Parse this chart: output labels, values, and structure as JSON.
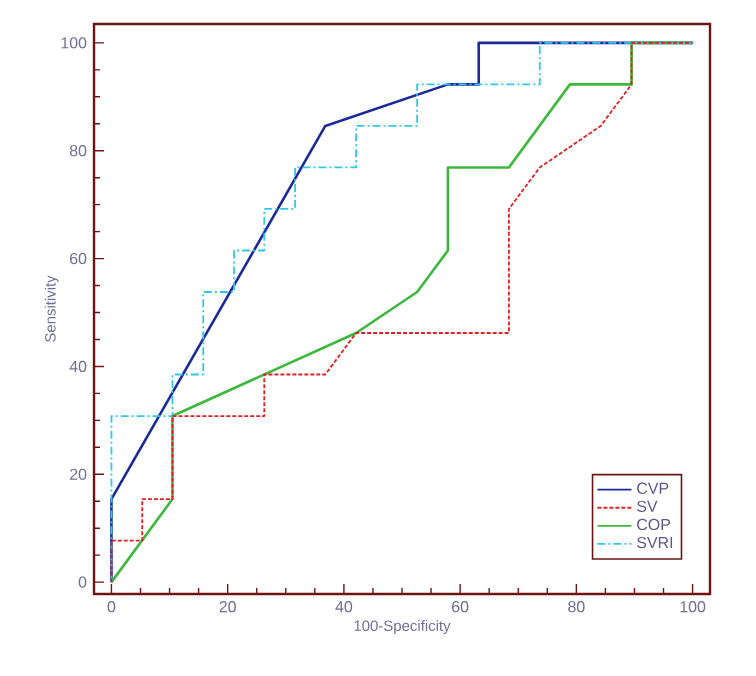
{
  "chart_data": {
    "type": "line",
    "xlabel": "100-Specificity",
    "ylabel": "Sensitivity",
    "xlim": [
      -3,
      103
    ],
    "ylim": [
      -2.2,
      103.5
    ],
    "xticks": [
      0,
      20,
      40,
      60,
      80,
      100
    ],
    "yticks": [
      0,
      20,
      40,
      60,
      80,
      100
    ],
    "grid": false,
    "legend": "bottom right",
    "marker": "none",
    "series": [
      {
        "name": "CVP",
        "color": "#1a2a9a",
        "line_style": "solid",
        "x": [
          0,
          0,
          36.8,
          57.9,
          63.2,
          63.2,
          100
        ],
        "values": [
          0,
          15.4,
          84.6,
          92.3,
          92.3,
          100,
          100
        ]
      },
      {
        "name": "SV",
        "color": "#e02020",
        "line_style": "dashed",
        "x": [
          0,
          0,
          5.3,
          5.3,
          10.5,
          10.5,
          26.3,
          26.3,
          36.8,
          42.1,
          68.4,
          68.4,
          73.7,
          84.2,
          89.5,
          89.5,
          100
        ],
        "values": [
          0,
          7.7,
          7.7,
          15.4,
          15.4,
          30.8,
          30.8,
          38.5,
          38.5,
          46.2,
          46.2,
          69.2,
          76.9,
          84.6,
          92.3,
          100,
          100
        ]
      },
      {
        "name": "COP",
        "color": "#3cb83c",
        "line_style": "solid",
        "x": [
          0,
          10.5,
          10.5,
          42.1,
          52.6,
          57.9,
          57.9,
          68.4,
          78.9,
          89.5,
          89.5,
          100
        ],
        "values": [
          0,
          15.4,
          30.8,
          46.2,
          53.8,
          61.5,
          76.9,
          76.9,
          92.3,
          92.3,
          100,
          100
        ]
      },
      {
        "name": "SVRI",
        "color": "#30c8e8",
        "line_style": "dashdot",
        "x": [
          0,
          0,
          10.5,
          10.5,
          15.8,
          15.8,
          21.1,
          21.1,
          26.3,
          26.3,
          31.6,
          31.6,
          42.1,
          42.1,
          52.6,
          52.6,
          73.7,
          73.7,
          100
        ],
        "values": [
          0,
          30.8,
          30.8,
          38.5,
          38.5,
          53.8,
          53.8,
          61.5,
          61.5,
          69.2,
          69.2,
          76.9,
          76.9,
          84.6,
          84.6,
          92.3,
          92.3,
          100,
          100
        ]
      }
    ]
  }
}
